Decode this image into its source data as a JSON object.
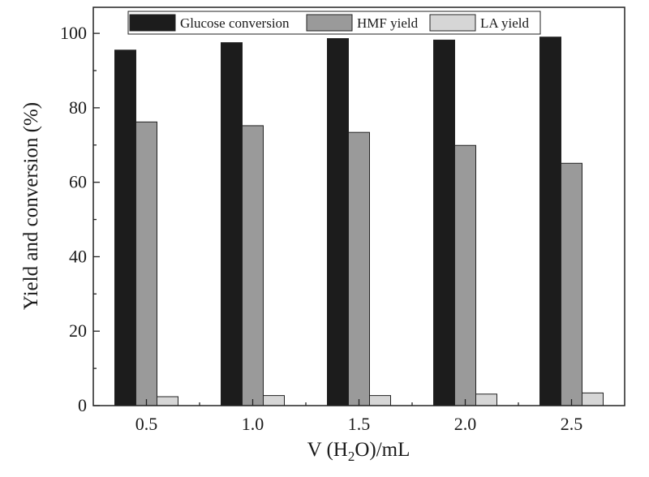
{
  "chart_data": {
    "type": "bar",
    "categories": [
      "0.5",
      "1.0",
      "1.5",
      "2.0",
      "2.5"
    ],
    "series": [
      {
        "name": "Glucose conversion",
        "values": [
          95.5,
          97.5,
          98.6,
          98.2,
          99.0
        ],
        "color": "#1c1c1c"
      },
      {
        "name": "HMF yield",
        "values": [
          76.2,
          75.2,
          73.4,
          69.9,
          65.1
        ],
        "color": "#9a9a9a"
      },
      {
        "name": "LA yield",
        "values": [
          2.4,
          2.7,
          2.7,
          3.1,
          3.4
        ],
        "color": "#d6d6d6"
      }
    ],
    "xlabel": {
      "main": "V (H",
      "sub": "2",
      "rest": "O)/mL"
    },
    "ylabel": "Yield and conversion (%)",
    "ylim": [
      0,
      107
    ],
    "yticks": [
      "0",
      "20",
      "40",
      "60",
      "80",
      "100"
    ],
    "legend_position": "top",
    "grid": false
  }
}
